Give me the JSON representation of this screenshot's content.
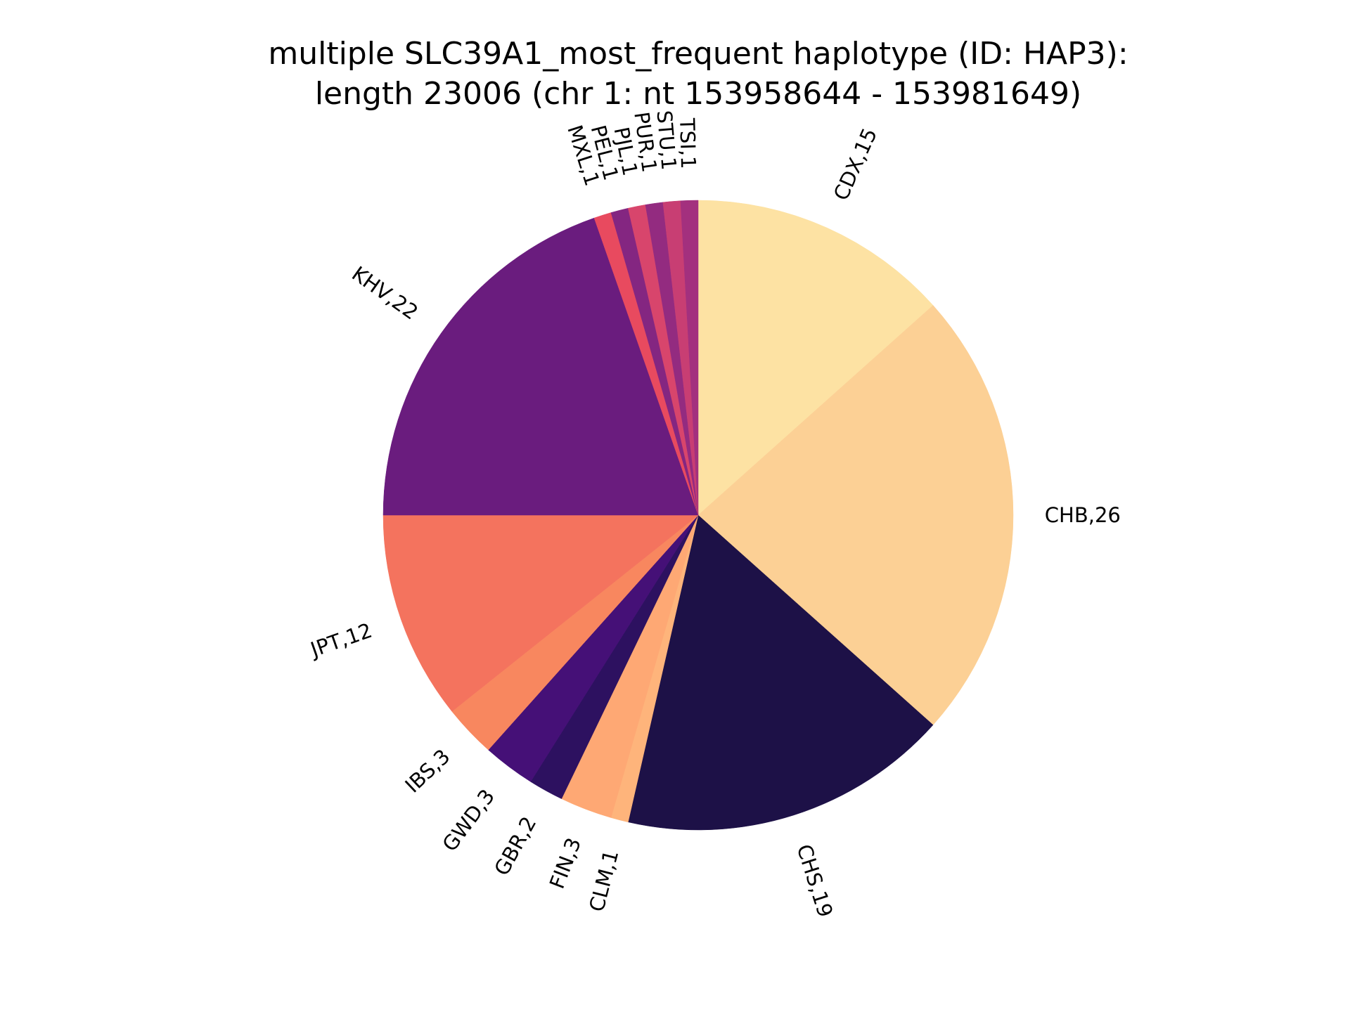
{
  "title_line1": "multiple SLC39A1_most_frequent haplotype (ID: HAP3):",
  "title_line2": "length 23006 (chr 1: nt 153958644 - 153981649)",
  "chart_data": {
    "type": "pie",
    "title": "multiple SLC39A1_most_frequent haplotype (ID: HAP3): length 23006 (chr 1: nt 153958644 - 153981649)",
    "start_angle": "12 o'clock",
    "direction": "clockwise",
    "slices": [
      {
        "label": "CDX,15",
        "name": "CDX",
        "value": 15,
        "color": "#fde2a3"
      },
      {
        "label": "CHB,26",
        "name": "CHB",
        "value": 26,
        "color": "#fcd095"
      },
      {
        "label": "CHS,19",
        "name": "CHS",
        "value": 19,
        "color": "#1d1147"
      },
      {
        "label": "CLM,1",
        "name": "CLM",
        "value": 1,
        "color": "#feb47b"
      },
      {
        "label": "FIN,3",
        "name": "FIN",
        "value": 3,
        "color": "#fea874"
      },
      {
        "label": "GBR,2",
        "name": "GBR",
        "value": 2,
        "color": "#2d1160"
      },
      {
        "label": "GWD,3",
        "name": "GWD",
        "value": 3,
        "color": "#451077"
      },
      {
        "label": "IBS,3",
        "name": "IBS",
        "value": 3,
        "color": "#f8875f"
      },
      {
        "label": "JPT,12",
        "name": "JPT",
        "value": 12,
        "color": "#f4735e"
      },
      {
        "label": "KHV,22",
        "name": "KHV",
        "value": 22,
        "color": "#6a1c7e"
      },
      {
        "label": "MXL,1",
        "name": "MXL",
        "value": 1,
        "color": "#e84a5f"
      },
      {
        "label": "PEL,1",
        "name": "PEL",
        "value": 1,
        "color": "#842681"
      },
      {
        "label": "PJL,1",
        "name": "PJL",
        "value": 1,
        "color": "#d8456c"
      },
      {
        "label": "PUR,1",
        "name": "PUR",
        "value": 1,
        "color": "#932b80"
      },
      {
        "label": "STU,1",
        "name": "STU",
        "value": 1,
        "color": "#c83e73"
      },
      {
        "label": "TSI,1",
        "name": "TSI",
        "value": 1,
        "color": "#a3307e"
      }
    ]
  }
}
